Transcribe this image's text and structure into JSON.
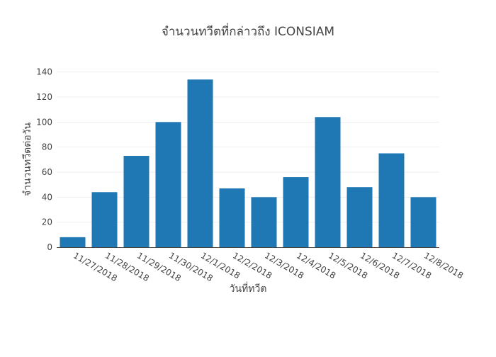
{
  "chart_data": {
    "type": "bar",
    "title": "จำนวนทวีตที่กล่าวถึง ICONSIAM",
    "xlabel": "วันที่ทวีต",
    "ylabel": "จำนวนทวีตต่อวัน",
    "categories": [
      "11/27/2018",
      "11/28/2018",
      "11/29/2018",
      "11/30/2018",
      "12/1/2018",
      "12/2/2018",
      "12/3/2018",
      "12/4/2018",
      "12/5/2018",
      "12/6/2018",
      "12/7/2018",
      "12/8/2018"
    ],
    "values": [
      8,
      44,
      73,
      100,
      134,
      47,
      40,
      56,
      104,
      48,
      75,
      40
    ],
    "ylim": [
      0,
      150
    ],
    "yticks": [
      0,
      20,
      40,
      60,
      80,
      100,
      120,
      140
    ],
    "grid": true,
    "bar_color": "#1f77b4",
    "legend": false
  }
}
